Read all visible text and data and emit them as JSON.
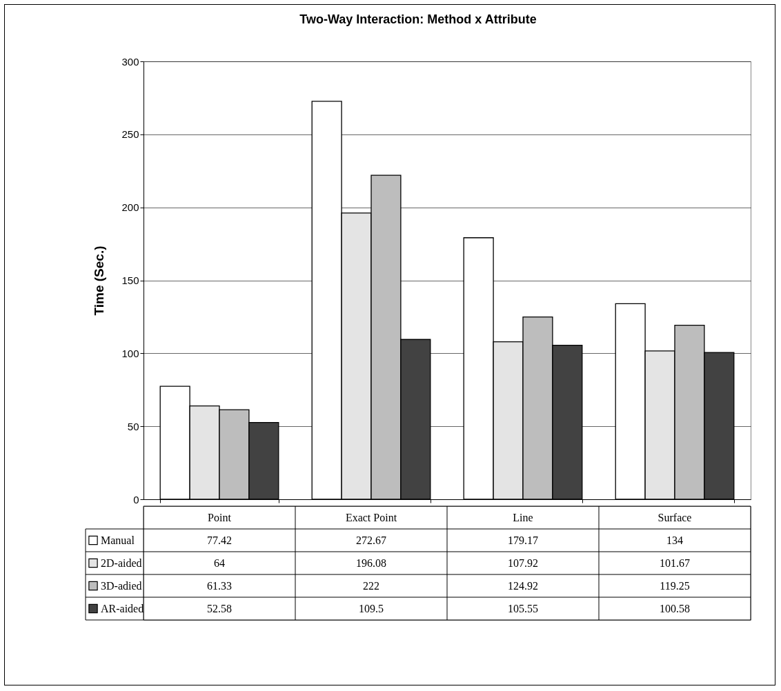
{
  "chart_data": {
    "type": "bar",
    "title": "Two-Way Interaction: Method x Attribute",
    "ylabel": "Time (Sec.)",
    "categories": [
      "Point",
      "Exact Point",
      "Line",
      "Surface"
    ],
    "series": [
      {
        "name": "Manual",
        "color": "#ffffff",
        "values": [
          77.42,
          272.67,
          179.17,
          134
        ]
      },
      {
        "name": "2D-aided",
        "color": "#e4e4e4",
        "values": [
          64,
          196.08,
          107.92,
          101.67
        ]
      },
      {
        "name": "3D-adied",
        "color": "#bdbdbd",
        "values": [
          61.33,
          222,
          124.92,
          119.25
        ]
      },
      {
        "name": "AR-aided",
        "color": "#424242",
        "values": [
          52.58,
          109.5,
          105.55,
          100.58
        ]
      }
    ],
    "ylim": [
      0,
      300
    ],
    "yticks": [
      0,
      50,
      100,
      150,
      200,
      250,
      300
    ],
    "grid": "y",
    "legend": "bottom",
    "data_labels": true
  }
}
